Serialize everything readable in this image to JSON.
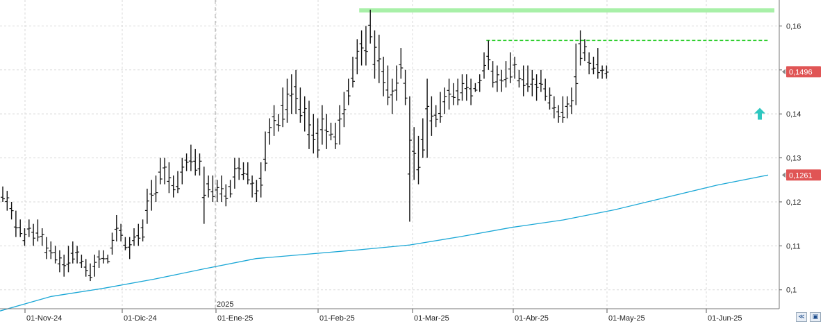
{
  "chart_data": {
    "type": "ohlc",
    "year_label": "2025",
    "x_tick_labels": [
      "01-Nov-24",
      "01-Dic-24",
      "01-Ene-25",
      "01-Feb-25",
      "01-Mar-25",
      "01-Abr-25",
      "01-May-25",
      "01-Jun-25"
    ],
    "y_tick_labels": [
      "0,16",
      "0,15",
      "0,14",
      "0,13",
      "0,12",
      "0,11",
      "0,1"
    ],
    "y_ticks": [
      0.16,
      0.15,
      0.14,
      0.13,
      0.12,
      0.11,
      0.1
    ],
    "ylim": [
      0.0957,
      0.1659
    ],
    "grid": true,
    "last_price_label": "0,1496",
    "last_price": 0.1496,
    "ma_label": "0,1261",
    "ma_value": 0.1261,
    "resistance_top": 0.1637,
    "resistance_mid": 0.1567,
    "ma_series": [
      0.0952,
      0.0985,
      0.1003,
      0.1024,
      0.1048,
      0.1071,
      0.1081,
      0.1091,
      0.1102,
      0.1121,
      0.1142,
      0.1159,
      0.1182,
      0.121,
      0.1238,
      0.1261
    ],
    "bars": [
      [
        0.1235,
        0.12
      ],
      [
        0.1225,
        0.118
      ],
      [
        0.12,
        0.116
      ],
      [
        0.118,
        0.112
      ],
      [
        0.116,
        0.112
      ],
      [
        0.114,
        0.11
      ],
      [
        0.116,
        0.112
      ],
      [
        0.115,
        0.11
      ],
      [
        0.116,
        0.111
      ],
      [
        0.114,
        0.11
      ],
      [
        0.112,
        0.107
      ],
      [
        0.111,
        0.107
      ],
      [
        0.11,
        0.106
      ],
      [
        0.109,
        0.104
      ],
      [
        0.108,
        0.103
      ],
      [
        0.11,
        0.104
      ],
      [
        0.111,
        0.106
      ],
      [
        0.11,
        0.106
      ],
      [
        0.108,
        0.105
      ],
      [
        0.107,
        0.103
      ],
      [
        0.106,
        0.102
      ],
      [
        0.108,
        0.103
      ],
      [
        0.109,
        0.105
      ],
      [
        0.109,
        0.106
      ],
      [
        0.108,
        0.106
      ],
      [
        0.113,
        0.108
      ],
      [
        0.117,
        0.111
      ],
      [
        0.115,
        0.111
      ],
      [
        0.112,
        0.109
      ],
      [
        0.112,
        0.107
      ],
      [
        0.114,
        0.11
      ],
      [
        0.115,
        0.11
      ],
      [
        0.116,
        0.111
      ],
      [
        0.123,
        0.115
      ],
      [
        0.125,
        0.118
      ],
      [
        0.126,
        0.12
      ],
      [
        0.13,
        0.124
      ],
      [
        0.13,
        0.124
      ],
      [
        0.129,
        0.122
      ],
      [
        0.126,
        0.121
      ],
      [
        0.127,
        0.122
      ],
      [
        0.13,
        0.124
      ],
      [
        0.131,
        0.127
      ],
      [
        0.133,
        0.127
      ],
      [
        0.132,
        0.126
      ],
      [
        0.131,
        0.126
      ],
      [
        0.128,
        0.115
      ],
      [
        0.126,
        0.121
      ],
      [
        0.126,
        0.12
      ],
      [
        0.125,
        0.12
      ],
      [
        0.126,
        0.12
      ],
      [
        0.124,
        0.119
      ],
      [
        0.125,
        0.121
      ],
      [
        0.13,
        0.123
      ],
      [
        0.13,
        0.125
      ],
      [
        0.129,
        0.125
      ],
      [
        0.129,
        0.124
      ],
      [
        0.126,
        0.121
      ],
      [
        0.125,
        0.12
      ],
      [
        0.129,
        0.121
      ],
      [
        0.136,
        0.127
      ],
      [
        0.139,
        0.133
      ],
      [
        0.142,
        0.135
      ],
      [
        0.14,
        0.136
      ],
      [
        0.146,
        0.137
      ],
      [
        0.148,
        0.138
      ],
      [
        0.149,
        0.14
      ],
      [
        0.15,
        0.14
      ],
      [
        0.146,
        0.138
      ],
      [
        0.144,
        0.136
      ],
      [
        0.143,
        0.132
      ],
      [
        0.14,
        0.131
      ],
      [
        0.139,
        0.13
      ],
      [
        0.142,
        0.133
      ],
      [
        0.14,
        0.132
      ],
      [
        0.138,
        0.134
      ],
      [
        0.138,
        0.132
      ],
      [
        0.142,
        0.133
      ],
      [
        0.145,
        0.137
      ],
      [
        0.148,
        0.142
      ],
      [
        0.153,
        0.146
      ],
      [
        0.157,
        0.149
      ],
      [
        0.159,
        0.151
      ],
      [
        0.16,
        0.151
      ],
      [
        0.1637,
        0.156
      ],
      [
        0.159,
        0.148
      ],
      [
        0.158,
        0.147
      ],
      [
        0.153,
        0.144
      ],
      [
        0.151,
        0.142
      ],
      [
        0.148,
        0.14
      ],
      [
        0.151,
        0.143
      ],
      [
        0.155,
        0.148
      ],
      [
        0.15,
        0.142
      ],
      [
        0.144,
        0.1155
      ],
      [
        0.137,
        0.125
      ],
      [
        0.135,
        0.124
      ],
      [
        0.139,
        0.13
      ],
      [
        0.148,
        0.13
      ],
      [
        0.144,
        0.135
      ],
      [
        0.142,
        0.137
      ],
      [
        0.145,
        0.138
      ],
      [
        0.146,
        0.14
      ],
      [
        0.148,
        0.141
      ],
      [
        0.147,
        0.142
      ],
      [
        0.148,
        0.142
      ],
      [
        0.149,
        0.143
      ],
      [
        0.149,
        0.143
      ],
      [
        0.148,
        0.142
      ],
      [
        0.147,
        0.145
      ],
      [
        0.149,
        0.145
      ],
      [
        0.154,
        0.148
      ],
      [
        0.1567,
        0.15
      ],
      [
        0.152,
        0.146
      ],
      [
        0.151,
        0.145
      ],
      [
        0.15,
        0.145
      ],
      [
        0.152,
        0.146
      ],
      [
        0.154,
        0.147
      ],
      [
        0.153,
        0.148
      ],
      [
        0.15,
        0.146
      ],
      [
        0.151,
        0.144
      ],
      [
        0.151,
        0.145
      ],
      [
        0.15,
        0.144
      ],
      [
        0.149,
        0.143
      ],
      [
        0.15,
        0.145
      ],
      [
        0.148,
        0.143
      ],
      [
        0.146,
        0.141
      ],
      [
        0.144,
        0.139
      ],
      [
        0.142,
        0.138
      ],
      [
        0.144,
        0.138
      ],
      [
        0.144,
        0.139
      ],
      [
        0.146,
        0.14
      ],
      [
        0.156,
        0.142
      ],
      [
        0.159,
        0.151
      ],
      [
        0.157,
        0.152
      ],
      [
        0.154,
        0.149
      ],
      [
        0.153,
        0.149
      ],
      [
        0.155,
        0.148
      ],
      [
        0.151,
        0.148
      ],
      [
        0.151,
        0.148
      ]
    ],
    "colors": {
      "bars": "#111111",
      "moving_average": "#1aa7d6",
      "resistance_top": "#a8f0a8",
      "resistance_mid": "#22cc22",
      "price_badge": "#e05555",
      "arrow": "#2ec7c0",
      "grid": "#d9d9d9"
    },
    "signal_icon": "up-arrow-icon"
  },
  "navigation": {
    "zoom_icon": "zoom-chevron-icon",
    "save_icon": "save-disk-icon"
  }
}
